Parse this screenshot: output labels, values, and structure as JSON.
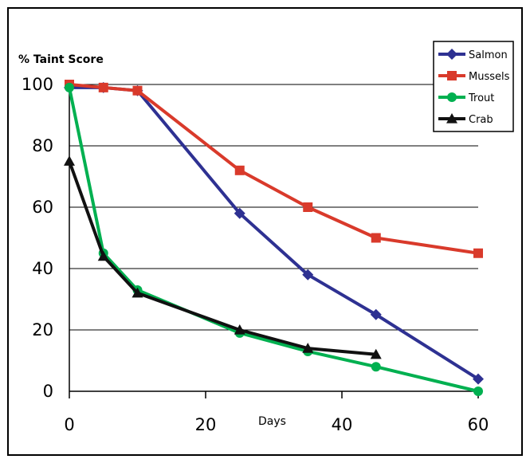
{
  "chart_data": {
    "type": "line",
    "title": "",
    "ylabel": "% Taint Score",
    "xlabel": "Days",
    "xlim": [
      0,
      60
    ],
    "ylim": [
      0,
      100
    ],
    "x_ticks": [
      0,
      20,
      40,
      60
    ],
    "y_ticks": [
      0,
      20,
      40,
      60,
      80,
      100
    ],
    "grid": "horizontal",
    "legend_position": "top-right",
    "series": [
      {
        "name": "Salmon",
        "color": "#2e3192",
        "marker": "diamond",
        "x": [
          0,
          5,
          10,
          25,
          35,
          45,
          60
        ],
        "y": [
          99,
          99,
          98,
          58,
          38,
          25,
          4
        ]
      },
      {
        "name": "Mussels",
        "color": "#d93a2b",
        "marker": "square",
        "x": [
          0,
          5,
          10,
          25,
          35,
          45,
          60
        ],
        "y": [
          100,
          99,
          98,
          72,
          60,
          50,
          45
        ]
      },
      {
        "name": "Trout",
        "color": "#00b050",
        "marker": "circle",
        "x": [
          0,
          5,
          10,
          25,
          35,
          45,
          60
        ],
        "y": [
          99,
          45,
          33,
          19,
          13,
          8,
          0
        ]
      },
      {
        "name": "Crab",
        "color": "#111111",
        "marker": "triangle",
        "x": [
          0,
          5,
          10,
          25,
          35,
          45
        ],
        "y": [
          75,
          44,
          32,
          20,
          14,
          12
        ]
      }
    ]
  }
}
